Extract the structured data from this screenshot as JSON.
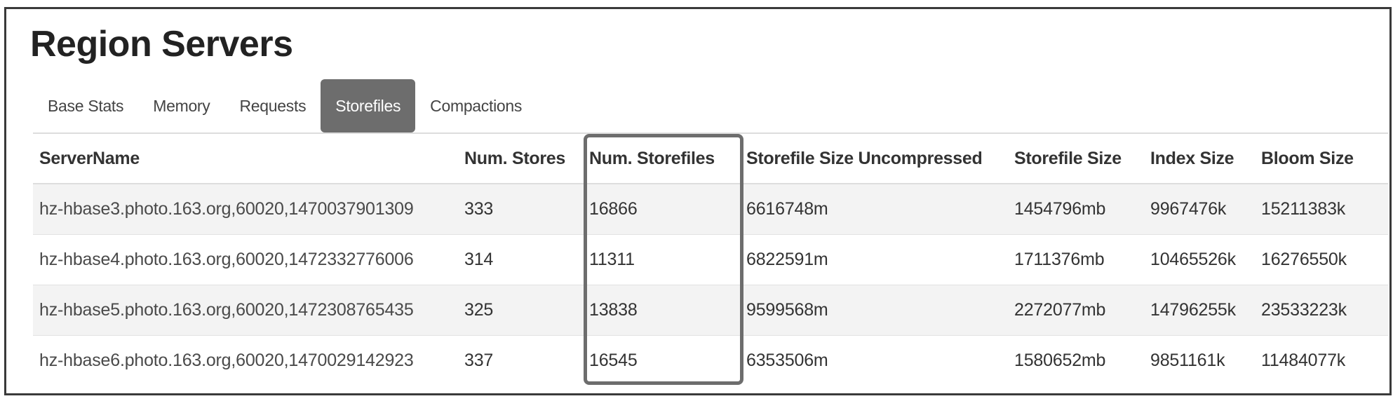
{
  "page": {
    "title": "Region Servers"
  },
  "tabs": [
    {
      "label": "Base Stats",
      "active": false
    },
    {
      "label": "Memory",
      "active": false
    },
    {
      "label": "Requests",
      "active": false
    },
    {
      "label": "Storefiles",
      "active": true
    },
    {
      "label": "Compactions",
      "active": false
    }
  ],
  "table": {
    "headers": [
      "ServerName",
      "Num. Stores",
      "Num. Storefiles",
      "Storefile Size Uncompressed",
      "Storefile Size",
      "Index Size",
      "Bloom Size"
    ],
    "rows": [
      [
        "hz-hbase3.photo.163.org,60020,1470037901309",
        "333",
        "16866",
        "6616748m",
        "1454796mb",
        "9967476k",
        "15211383k"
      ],
      [
        "hz-hbase4.photo.163.org,60020,1472332776006",
        "314",
        "11311",
        "6822591m",
        "1711376mb",
        "10465526k",
        "16276550k"
      ],
      [
        "hz-hbase5.photo.163.org,60020,1472308765435",
        "325",
        "13838",
        "9599568m",
        "2272077mb",
        "14796255k",
        "23533223k"
      ],
      [
        "hz-hbase6.photo.163.org,60020,1470029142923",
        "337",
        "16545",
        "6353506m",
        "1580652mb",
        "9851161k",
        "11484077k"
      ]
    ]
  },
  "colors": {
    "active_tab": "#6d6d6d",
    "highlight_border": "#6d6d6d",
    "row_stripe": "#f3f3f3"
  }
}
